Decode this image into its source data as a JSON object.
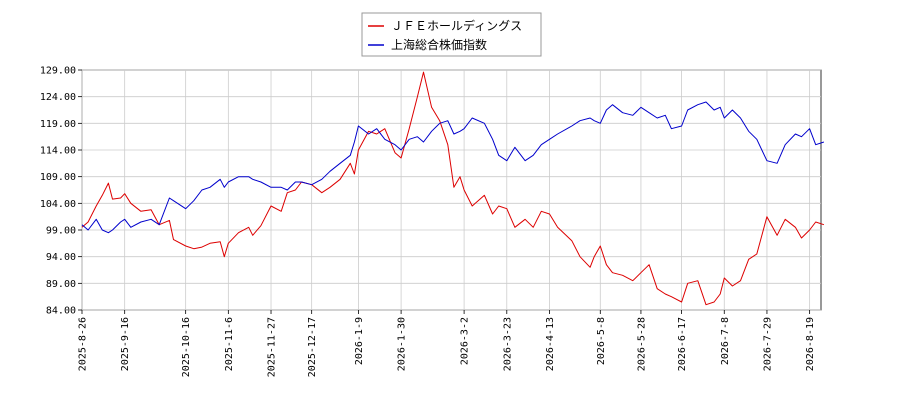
{
  "chart_data": {
    "type": "line",
    "title": "",
    "xlabel": "",
    "ylabel": "",
    "ylim": [
      84.0,
      129.0
    ],
    "y_ticks": [
      "129.00",
      "124.00",
      "119.00",
      "114.00",
      "109.00",
      "104.00",
      "99.00",
      "94.00",
      "89.00",
      "84.00"
    ],
    "x_tick_labels": [
      "2025-8-26",
      "2025-9-16",
      "2025-10-16",
      "2025-11-6",
      "2025-11-27",
      "2025-12-17",
      "2026-1-9",
      "2026-1-30",
      "2026-3-2",
      "2026-3-23",
      "2026-4-13",
      "2026-5-8",
      "2026-5-28",
      "2026-6-17",
      "2026-7-8",
      "2026-7-29",
      "2026-8-19"
    ],
    "grid": true,
    "legend_position": "top-center",
    "series": [
      {
        "name": "ＪＦＥホールディングス",
        "color": "#dd0000",
        "points": [
          [
            "2025-8-26",
            99.5
          ],
          [
            "2025-8-29",
            100.5
          ],
          [
            "2025-9-2",
            103.5
          ],
          [
            "2025-9-5",
            105.5
          ],
          [
            "2025-9-8",
            107.8
          ],
          [
            "2025-9-10",
            104.8
          ],
          [
            "2025-9-14",
            105.0
          ],
          [
            "2025-9-16",
            105.8
          ],
          [
            "2025-9-19",
            104.0
          ],
          [
            "2025-9-24",
            102.5
          ],
          [
            "2025-9-29",
            102.8
          ],
          [
            "2025-10-3",
            100.0
          ],
          [
            "2025-10-8",
            100.8
          ],
          [
            "2025-10-10",
            97.2
          ],
          [
            "2025-10-16",
            96.0
          ],
          [
            "2025-10-20",
            95.5
          ],
          [
            "2025-10-24",
            95.8
          ],
          [
            "2025-10-28",
            96.5
          ],
          [
            "2025-11-2",
            96.8
          ],
          [
            "2025-11-4",
            94.0
          ],
          [
            "2025-11-6",
            96.5
          ],
          [
            "2025-11-11",
            98.5
          ],
          [
            "2025-11-16",
            99.5
          ],
          [
            "2025-11-18",
            98.0
          ],
          [
            "2025-11-22",
            99.8
          ],
          [
            "2025-11-27",
            103.5
          ],
          [
            "2025-12-2",
            102.5
          ],
          [
            "2025-12-5",
            106.0
          ],
          [
            "2025-12-9",
            106.5
          ],
          [
            "2025-12-12",
            108.0
          ],
          [
            "2025-12-17",
            107.5
          ],
          [
            "2025-12-22",
            106.0
          ],
          [
            "2025-12-26",
            107.0
          ],
          [
            "2025-12-31",
            108.5
          ],
          [
            "2026-1-5",
            111.5
          ],
          [
            "2026-1-7",
            109.5
          ],
          [
            "2026-1-9",
            114.0
          ],
          [
            "2026-1-14",
            117.5
          ],
          [
            "2026-1-18",
            117.0
          ],
          [
            "2026-1-22",
            118.0
          ],
          [
            "2026-1-27",
            113.5
          ],
          [
            "2026-1-30",
            112.5
          ],
          [
            "2026-2-3",
            118.0
          ],
          [
            "2026-2-7",
            124.0
          ],
          [
            "2026-2-10",
            128.6
          ],
          [
            "2026-2-14",
            122.0
          ],
          [
            "2026-2-18",
            119.5
          ],
          [
            "2026-2-22",
            115.0
          ],
          [
            "2026-2-25",
            107.0
          ],
          [
            "2026-2-28",
            109.0
          ],
          [
            "2026-3-2",
            106.5
          ],
          [
            "2026-3-6",
            103.5
          ],
          [
            "2026-3-12",
            105.5
          ],
          [
            "2026-3-16",
            102.0
          ],
          [
            "2026-3-19",
            103.5
          ],
          [
            "2026-3-23",
            103.0
          ],
          [
            "2026-3-27",
            99.5
          ],
          [
            "2026-4-1",
            101.0
          ],
          [
            "2026-4-5",
            99.5
          ],
          [
            "2026-4-9",
            102.5
          ],
          [
            "2026-4-13",
            102.0
          ],
          [
            "2026-4-17",
            99.5
          ],
          [
            "2026-4-24",
            97.0
          ],
          [
            "2026-4-28",
            94.0
          ],
          [
            "2026-5-3",
            92.0
          ],
          [
            "2026-5-5",
            94.0
          ],
          [
            "2026-5-8",
            96.0
          ],
          [
            "2026-5-11",
            92.5
          ],
          [
            "2026-5-14",
            91.0
          ],
          [
            "2026-5-19",
            90.5
          ],
          [
            "2026-5-24",
            89.5
          ],
          [
            "2026-5-28",
            91.0
          ],
          [
            "2026-6-1",
            92.5
          ],
          [
            "2026-6-5",
            88.0
          ],
          [
            "2026-6-9",
            87.0
          ],
          [
            "2026-6-12",
            86.5
          ],
          [
            "2026-6-17",
            85.5
          ],
          [
            "2026-6-20",
            89.0
          ],
          [
            "2026-6-25",
            89.5
          ],
          [
            "2026-6-29",
            85.0
          ],
          [
            "2026-7-3",
            85.5
          ],
          [
            "2026-7-6",
            87.0
          ],
          [
            "2026-7-8",
            90.0
          ],
          [
            "2026-7-12",
            88.5
          ],
          [
            "2026-7-16",
            89.5
          ],
          [
            "2026-7-20",
            93.5
          ],
          [
            "2026-7-24",
            94.5
          ],
          [
            "2026-7-29",
            101.5
          ],
          [
            "2026-8-3",
            98.0
          ],
          [
            "2026-8-7",
            101.0
          ],
          [
            "2026-8-12",
            99.5
          ],
          [
            "2026-8-15",
            97.5
          ],
          [
            "2026-8-19",
            99.0
          ],
          [
            "2026-8-22",
            100.5
          ],
          [
            "2026-8-26",
            100.0
          ]
        ]
      },
      {
        "name": "上海総合株価指数",
        "color": "#0000cc",
        "points": [
          [
            "2025-8-26",
            100.0
          ],
          [
            "2025-8-29",
            99.0
          ],
          [
            "2025-9-2",
            101.0
          ],
          [
            "2025-9-5",
            99.0
          ],
          [
            "2025-9-8",
            98.5
          ],
          [
            "2025-9-10",
            99.0
          ],
          [
            "2025-9-14",
            100.5
          ],
          [
            "2025-9-16",
            101.0
          ],
          [
            "2025-9-19",
            99.5
          ],
          [
            "2025-9-24",
            100.5
          ],
          [
            "2025-9-29",
            101.0
          ],
          [
            "2025-10-3",
            100.0
          ],
          [
            "2025-10-8",
            105.0
          ],
          [
            "2025-10-10",
            104.5
          ],
          [
            "2025-10-16",
            103.0
          ],
          [
            "2025-10-20",
            104.5
          ],
          [
            "2025-10-24",
            106.5
          ],
          [
            "2025-10-28",
            107.0
          ],
          [
            "2025-11-2",
            108.5
          ],
          [
            "2025-11-4",
            107.0
          ],
          [
            "2025-11-6",
            108.0
          ],
          [
            "2025-11-11",
            109.0
          ],
          [
            "2025-11-16",
            109.0
          ],
          [
            "2025-11-18",
            108.5
          ],
          [
            "2025-11-22",
            108.0
          ],
          [
            "2025-11-27",
            107.0
          ],
          [
            "2025-12-2",
            107.0
          ],
          [
            "2025-12-5",
            106.5
          ],
          [
            "2025-12-9",
            108.0
          ],
          [
            "2025-12-12",
            108.0
          ],
          [
            "2025-12-17",
            107.5
          ],
          [
            "2025-12-22",
            108.5
          ],
          [
            "2025-12-26",
            110.0
          ],
          [
            "2025-12-31",
            111.5
          ],
          [
            "2026-1-5",
            113.0
          ],
          [
            "2026-1-7",
            115.5
          ],
          [
            "2026-1-9",
            118.5
          ],
          [
            "2026-1-14",
            117.0
          ],
          [
            "2026-1-18",
            118.0
          ],
          [
            "2026-1-22",
            116.0
          ],
          [
            "2026-1-27",
            115.0
          ],
          [
            "2026-1-30",
            114.0
          ],
          [
            "2026-2-3",
            116.0
          ],
          [
            "2026-2-7",
            116.5
          ],
          [
            "2026-2-10",
            115.5
          ],
          [
            "2026-2-14",
            117.5
          ],
          [
            "2026-2-18",
            119.0
          ],
          [
            "2026-2-22",
            119.5
          ],
          [
            "2026-2-25",
            117.0
          ],
          [
            "2026-2-28",
            117.5
          ],
          [
            "2026-3-2",
            118.0
          ],
          [
            "2026-3-6",
            120.0
          ],
          [
            "2026-3-12",
            119.0
          ],
          [
            "2026-3-16",
            116.0
          ],
          [
            "2026-3-19",
            113.0
          ],
          [
            "2026-3-23",
            112.0
          ],
          [
            "2026-3-27",
            114.5
          ],
          [
            "2026-4-1",
            112.0
          ],
          [
            "2026-4-5",
            113.0
          ],
          [
            "2026-4-9",
            115.0
          ],
          [
            "2026-4-13",
            116.0
          ],
          [
            "2026-4-17",
            117.0
          ],
          [
            "2026-4-24",
            118.5
          ],
          [
            "2026-4-28",
            119.5
          ],
          [
            "2026-5-3",
            120.0
          ],
          [
            "2026-5-5",
            119.5
          ],
          [
            "2026-5-8",
            119.0
          ],
          [
            "2026-5-11",
            121.5
          ],
          [
            "2026-5-14",
            122.5
          ],
          [
            "2026-5-19",
            121.0
          ],
          [
            "2026-5-24",
            120.5
          ],
          [
            "2026-5-28",
            122.0
          ],
          [
            "2026-6-1",
            121.0
          ],
          [
            "2026-6-5",
            120.0
          ],
          [
            "2026-6-9",
            120.5
          ],
          [
            "2026-6-12",
            118.0
          ],
          [
            "2026-6-17",
            118.5
          ],
          [
            "2026-6-20",
            121.5
          ],
          [
            "2026-6-25",
            122.5
          ],
          [
            "2026-6-29",
            123.0
          ],
          [
            "2026-7-3",
            121.5
          ],
          [
            "2026-7-6",
            122.0
          ],
          [
            "2026-7-8",
            120.0
          ],
          [
            "2026-7-12",
            121.5
          ],
          [
            "2026-7-16",
            120.0
          ],
          [
            "2026-7-20",
            117.5
          ],
          [
            "2026-7-24",
            116.0
          ],
          [
            "2026-7-29",
            112.0
          ],
          [
            "2026-8-3",
            111.5
          ],
          [
            "2026-8-7",
            115.0
          ],
          [
            "2026-8-12",
            117.0
          ],
          [
            "2026-8-15",
            116.5
          ],
          [
            "2026-8-19",
            118.0
          ],
          [
            "2026-8-22",
            115.0
          ],
          [
            "2026-8-26",
            115.5
          ]
        ]
      }
    ]
  }
}
